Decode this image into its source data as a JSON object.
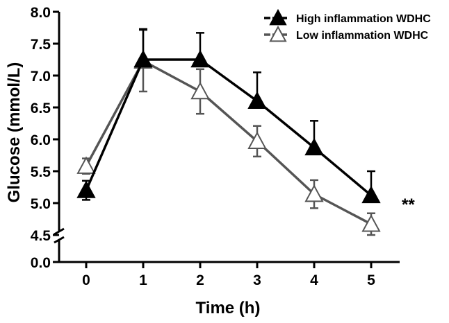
{
  "chart_data": {
    "type": "line",
    "title": "",
    "xlabel": "Time (h)",
    "ylabel": "Glucose (mmol/L)",
    "x": [
      0,
      1,
      2,
      3,
      4,
      5
    ],
    "x_ticks": [
      "0",
      "1",
      "2",
      "3",
      "4",
      "5"
    ],
    "y_ticks": [
      "0.0",
      "4.5",
      "5.0",
      "5.5",
      "6.0",
      "6.5",
      "7.0",
      "7.5",
      "8.0"
    ],
    "ylim": [
      4.5,
      8.0
    ],
    "y_axis_break": true,
    "y_axis_break_below": 0.0,
    "grid": false,
    "legend_position": "top-right",
    "series": [
      {
        "name": "High inflammation WDHC",
        "color": "#000000",
        "marker": "filled-triangle",
        "values": [
          5.2,
          7.25,
          7.25,
          6.6,
          5.87,
          5.12
        ],
        "error": [
          0.15,
          0.48,
          0.42,
          0.45,
          0.42,
          0.38
        ]
      },
      {
        "name": "Low inflammation WDHC",
        "color": "#555555",
        "marker": "open-triangle",
        "values": [
          5.58,
          7.23,
          6.75,
          5.97,
          5.14,
          4.67
        ],
        "error": [
          0.12,
          0.48,
          0.35,
          0.24,
          0.22,
          0.17
        ]
      }
    ],
    "annotations": [
      {
        "text": "**",
        "x": 5,
        "y": 5.0
      }
    ]
  }
}
